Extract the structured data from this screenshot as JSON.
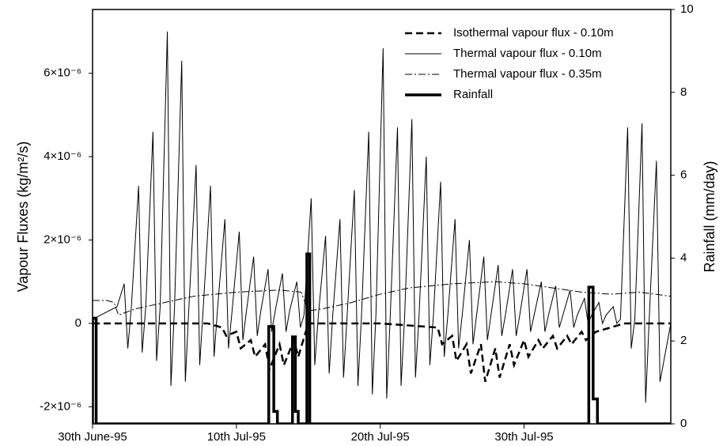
{
  "chart_data": {
    "type": "line",
    "y_label": "Vapour Fluxes (kg/m²/s)",
    "y2_label": "Rainfall (mm/day)",
    "xlim": [
      0,
      40.2
    ],
    "xticks": [
      {
        "value": 0,
        "label": "30th June-95"
      },
      {
        "value": 10,
        "label": "10th Jul-95"
      },
      {
        "value": 20,
        "label": "20th Jul-95"
      },
      {
        "value": 30,
        "label": "30th Jul-95"
      }
    ],
    "ylim": [
      -2.41e-06,
      7.53e-06
    ],
    "yticks": [
      {
        "value": -2e-06,
        "label": "-2×10⁻⁶"
      },
      0,
      {
        "value": 2e-06,
        "label": "2×10⁻⁶"
      },
      {
        "value": 4e-06,
        "label": "4×10⁻⁶"
      },
      {
        "value": 6e-06,
        "label": "6×10⁻⁶"
      }
    ],
    "y2lim": [
      0,
      10
    ],
    "y2ticks": [
      0,
      2,
      4,
      6,
      8,
      10
    ],
    "legend": "upper right",
    "series": [
      {
        "name": "Isothermal vapour flux - 0.10m",
        "color": "#000000",
        "linestyle": "dashed",
        "linewidth": 2.5,
        "x": [
          0,
          8,
          9,
          9.3,
          10,
          10.3,
          11,
          11.3,
          12,
          12.3,
          13,
          13.3,
          14,
          14.3,
          15,
          20,
          24,
          24.3,
          25,
          25.3,
          26,
          26.3,
          27,
          27.3,
          28,
          28.3,
          29,
          29.3,
          30,
          30.3,
          31,
          31.3,
          32,
          32.3,
          33,
          33.3,
          34,
          34.3,
          35,
          36,
          37,
          40.2
        ],
        "values": [
          0,
          0,
          -1e-07,
          -3e-07,
          -2e-07,
          -6e-07,
          -4e-07,
          -8e-07,
          -5e-07,
          -1.1e-06,
          -5e-07,
          -1e-06,
          -4e-07,
          -8e-07,
          0,
          0,
          -1e-07,
          -5e-07,
          -3e-07,
          -9e-07,
          -5e-07,
          -1.2e-06,
          -5e-07,
          -1.4e-06,
          -6e-07,
          -1.3e-06,
          -5e-07,
          -1e-06,
          -4e-07,
          -8e-07,
          -4e-07,
          -6e-07,
          -3e-07,
          -6e-07,
          -3e-07,
          -5e-07,
          -2e-07,
          -4e-07,
          -2e-07,
          -1e-07,
          0,
          0
        ]
      },
      {
        "name": "Thermal vapour flux - 0.10m",
        "color": "#000000",
        "linestyle": "solid",
        "linewidth": 1,
        "x": [
          0,
          1.7,
          2.2,
          2.45,
          2.7,
          3.2,
          3.45,
          3.7,
          4.2,
          4.45,
          4.7,
          5.2,
          5.45,
          5.7,
          6.2,
          6.45,
          6.7,
          7.2,
          7.45,
          7.7,
          8.2,
          8.45,
          8.7,
          9.2,
          9.45,
          9.7,
          10.2,
          10.45,
          10.7,
          11.2,
          11.45,
          11.7,
          12.2,
          12.45,
          12.7,
          13.2,
          13.45,
          13.7,
          14.2,
          14.45,
          14.7,
          15.2,
          15.45,
          15.7,
          16.2,
          16.45,
          16.7,
          17.2,
          17.45,
          17.7,
          18.2,
          18.45,
          18.7,
          19.2,
          19.45,
          19.7,
          20.2,
          20.45,
          20.7,
          21.2,
          21.45,
          21.7,
          22.2,
          22.45,
          22.7,
          23.2,
          23.45,
          23.7,
          24.2,
          24.45,
          24.7,
          25.2,
          25.45,
          25.7,
          26.2,
          26.45,
          26.7,
          27.2,
          27.45,
          27.7,
          28.2,
          28.45,
          28.7,
          29.2,
          29.45,
          29.7,
          30.2,
          30.45,
          30.7,
          31.2,
          31.45,
          31.7,
          32.2,
          32.45,
          32.7,
          33.2,
          33.45,
          33.7,
          34.2,
          34.45,
          34.7,
          35.2,
          35.45,
          35.7,
          36.2,
          36.45,
          36.7,
          37.2,
          37.45,
          37.7,
          38.2,
          38.45,
          38.7,
          39.2,
          39.45,
          40.2
        ],
        "values": [
          1e-07,
          4e-07,
          9.5e-07,
          -6e-07,
          4e-07,
          3.3e-06,
          -7e-07,
          4e-07,
          4.6e-06,
          -9e-07,
          4e-07,
          7e-06,
          -1.5e-06,
          4e-07,
          6.3e-06,
          -1.4e-06,
          4e-07,
          3.8e-06,
          -1e-06,
          4e-07,
          3.3e-06,
          -8e-07,
          4e-07,
          2.5e-06,
          -6e-07,
          3e-07,
          2.2e-06,
          -4e-07,
          3e-07,
          1.6e-06,
          -3e-07,
          3e-07,
          1.3e-06,
          -2e-07,
          3e-07,
          1.2e-06,
          -2e-07,
          3e-07,
          1e-06,
          -1e-07,
          2e-07,
          3e-06,
          -1e-06,
          2e-07,
          2.1e-06,
          -1.2e-06,
          2e-07,
          2.5e-06,
          -1.3e-06,
          2e-07,
          3.2e-06,
          -1.5e-06,
          2e-07,
          4.6e-06,
          -1.7e-06,
          2e-07,
          6.6e-06,
          -1.8e-06,
          2e-07,
          4.7e-06,
          -1.5e-06,
          2e-07,
          4.9e-06,
          -1.3e-06,
          2e-07,
          4e-06,
          -1e-06,
          2e-07,
          3.4e-06,
          -8e-07,
          2e-07,
          2.5e-06,
          -6e-07,
          2e-07,
          2e-06,
          -5e-07,
          2e-07,
          1.6e-06,
          -4e-07,
          2e-07,
          1.4e-06,
          -3e-07,
          2e-07,
          1.3e-06,
          -3e-07,
          2e-07,
          1.3e-06,
          -2e-07,
          2e-07,
          1e-06,
          -2e-07,
          2e-07,
          9e-07,
          -1e-07,
          2e-07,
          8e-07,
          -1e-07,
          2e-07,
          6e-07,
          0,
          2e-07,
          5e-07,
          0,
          2e-07,
          4e-07,
          0,
          1e-07,
          4.7e-06,
          -6e-07,
          1e-07,
          4.8e-06,
          -1.9e-06,
          1e-07,
          3.9e-06,
          -1.4e-06,
          0
        ]
      },
      {
        "name": "Thermal vapour flux - 0.35m",
        "color": "#000000",
        "linestyle": "dashdot",
        "linewidth": 1,
        "x": [
          0,
          1,
          1.5,
          1.8,
          3,
          5,
          7,
          10,
          13,
          14.5,
          15,
          16,
          18,
          20,
          22,
          25,
          28,
          30,
          32,
          34,
          36,
          38,
          40.2
        ],
        "values": [
          5.5e-07,
          5.5e-07,
          5e-07,
          2e-07,
          3.5e-07,
          5e-07,
          6.5e-07,
          7.5e-07,
          8e-07,
          7.5e-07,
          3e-07,
          3.5e-07,
          5e-07,
          7e-07,
          8.5e-07,
          9.5e-07,
          1e-06,
          9.5e-07,
          8.5e-07,
          7.5e-07,
          7e-07,
          7.5e-07,
          6.5e-07
        ]
      },
      {
        "name": "Rainfall",
        "color": "#000000",
        "linestyle": "solid",
        "linewidth": 3.5,
        "axis": "y2",
        "x": [
          0,
          0,
          0.25,
          0.25,
          12.25,
          12.25,
          12.6,
          12.6,
          12.85,
          12.85,
          13.9,
          13.9,
          14.1,
          14.1,
          14.3,
          14.3,
          14.9,
          14.9,
          15.1,
          15.1,
          34.5,
          34.5,
          34.8,
          34.8,
          35.1,
          35.1,
          40.2
        ],
        "values": [
          0,
          2.55,
          2.55,
          0,
          0,
          2.35,
          2.35,
          0.3,
          0.3,
          0,
          0,
          2.1,
          2.1,
          0.3,
          0.3,
          0,
          0,
          4.1,
          4.1,
          0,
          0,
          3.3,
          3.3,
          0.6,
          0.6,
          0,
          0
        ]
      }
    ]
  }
}
